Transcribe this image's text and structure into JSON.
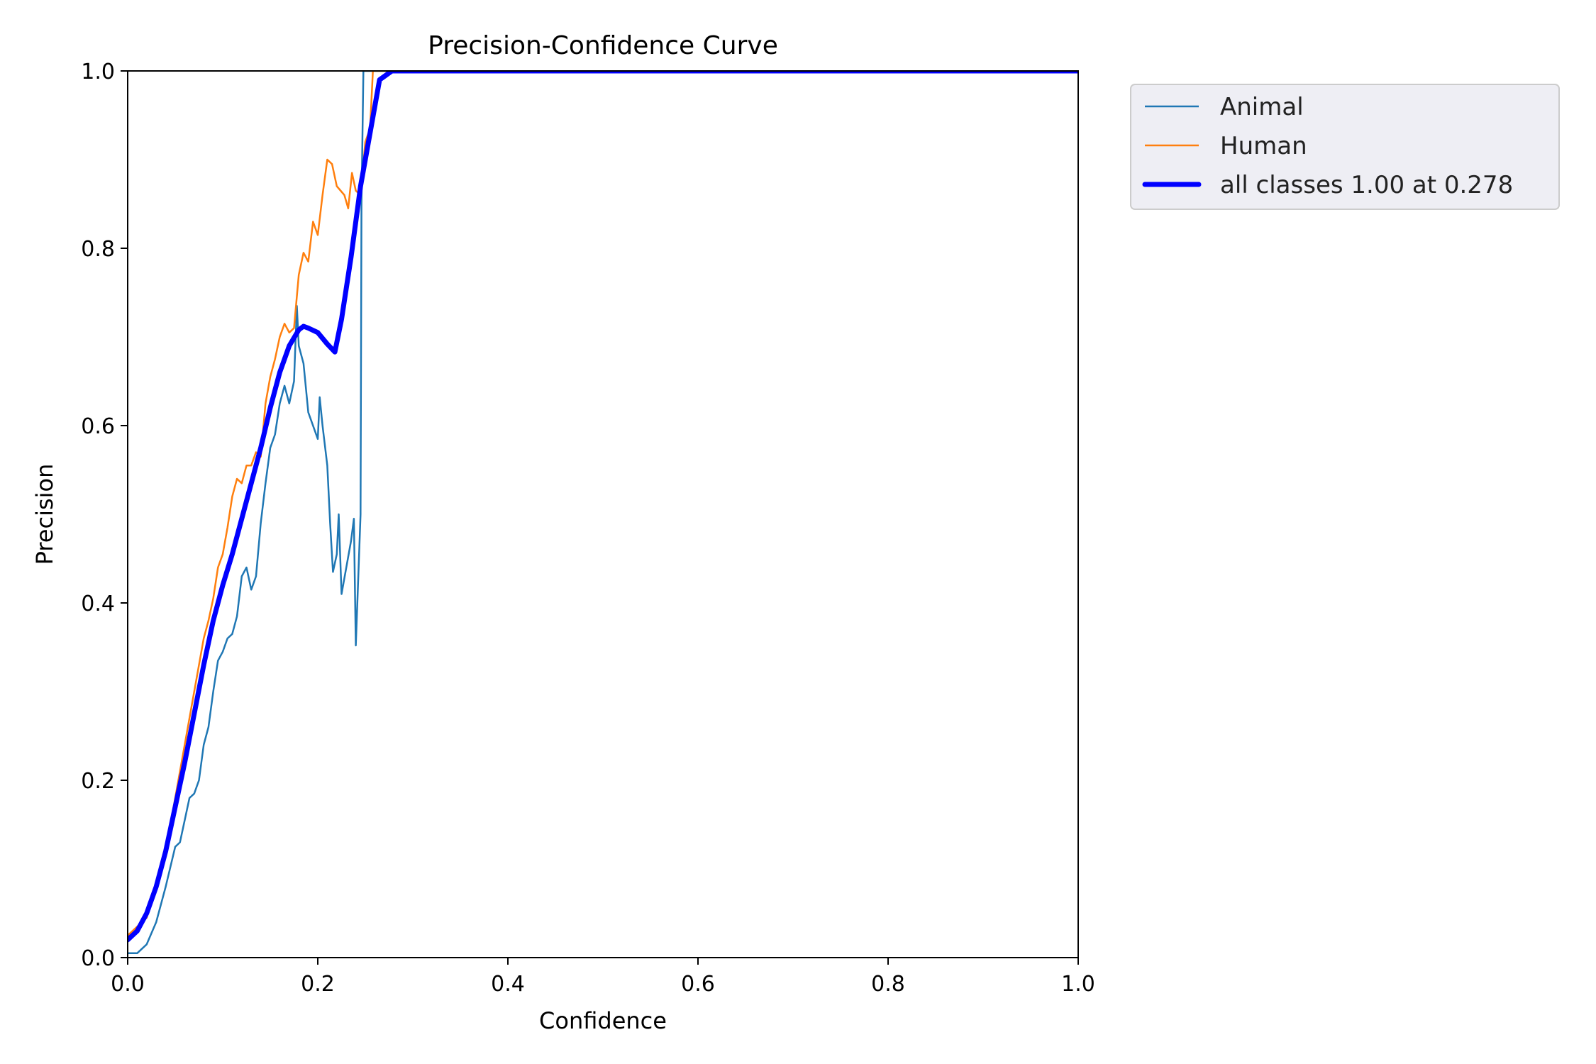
{
  "chart_data": {
    "type": "line",
    "title": "Precision-Confidence Curve",
    "xlabel": "Confidence",
    "ylabel": "Precision",
    "xlim": [
      0,
      1
    ],
    "ylim": [
      0,
      1
    ],
    "xticks": [
      "0.0",
      "0.2",
      "0.4",
      "0.6",
      "0.8",
      "1.0"
    ],
    "yticks": [
      "0.0",
      "0.2",
      "0.4",
      "0.6",
      "0.8",
      "1.0"
    ],
    "grid": false,
    "legend_position": "outside-top-right",
    "series": [
      {
        "name": "Animal",
        "color": "#1f77b4",
        "points": [
          [
            0.0,
            0.005
          ],
          [
            0.01,
            0.005
          ],
          [
            0.02,
            0.015
          ],
          [
            0.03,
            0.04
          ],
          [
            0.04,
            0.08
          ],
          [
            0.05,
            0.125
          ],
          [
            0.055,
            0.13
          ],
          [
            0.06,
            0.155
          ],
          [
            0.065,
            0.18
          ],
          [
            0.07,
            0.185
          ],
          [
            0.075,
            0.2
          ],
          [
            0.08,
            0.24
          ],
          [
            0.085,
            0.26
          ],
          [
            0.09,
            0.3
          ],
          [
            0.095,
            0.335
          ],
          [
            0.1,
            0.345
          ],
          [
            0.105,
            0.36
          ],
          [
            0.11,
            0.365
          ],
          [
            0.115,
            0.385
          ],
          [
            0.12,
            0.43
          ],
          [
            0.125,
            0.44
          ],
          [
            0.13,
            0.415
          ],
          [
            0.135,
            0.43
          ],
          [
            0.14,
            0.49
          ],
          [
            0.145,
            0.535
          ],
          [
            0.15,
            0.575
          ],
          [
            0.155,
            0.59
          ],
          [
            0.16,
            0.625
          ],
          [
            0.165,
            0.645
          ],
          [
            0.17,
            0.625
          ],
          [
            0.175,
            0.65
          ],
          [
            0.178,
            0.735
          ],
          [
            0.18,
            0.69
          ],
          [
            0.185,
            0.67
          ],
          [
            0.19,
            0.615
          ],
          [
            0.2,
            0.585
          ],
          [
            0.202,
            0.632
          ],
          [
            0.205,
            0.6
          ],
          [
            0.21,
            0.555
          ],
          [
            0.213,
            0.49
          ],
          [
            0.216,
            0.435
          ],
          [
            0.22,
            0.455
          ],
          [
            0.222,
            0.5
          ],
          [
            0.225,
            0.41
          ],
          [
            0.23,
            0.44
          ],
          [
            0.235,
            0.47
          ],
          [
            0.238,
            0.495
          ],
          [
            0.24,
            0.352
          ],
          [
            0.245,
            0.5
          ],
          [
            0.246,
            0.85
          ],
          [
            0.248,
            1.0
          ],
          [
            1.0,
            1.0
          ]
        ]
      },
      {
        "name": "Human",
        "color": "#ff7f0e",
        "points": [
          [
            0.0,
            0.025
          ],
          [
            0.02,
            0.045
          ],
          [
            0.04,
            0.12
          ],
          [
            0.05,
            0.18
          ],
          [
            0.06,
            0.24
          ],
          [
            0.07,
            0.3
          ],
          [
            0.08,
            0.36
          ],
          [
            0.085,
            0.38
          ],
          [
            0.09,
            0.405
          ],
          [
            0.095,
            0.44
          ],
          [
            0.1,
            0.455
          ],
          [
            0.105,
            0.485
          ],
          [
            0.11,
            0.52
          ],
          [
            0.115,
            0.54
          ],
          [
            0.12,
            0.535
          ],
          [
            0.125,
            0.555
          ],
          [
            0.13,
            0.555
          ],
          [
            0.135,
            0.57
          ],
          [
            0.14,
            0.565
          ],
          [
            0.145,
            0.625
          ],
          [
            0.15,
            0.655
          ],
          [
            0.155,
            0.675
          ],
          [
            0.16,
            0.7
          ],
          [
            0.165,
            0.715
          ],
          [
            0.17,
            0.705
          ],
          [
            0.175,
            0.71
          ],
          [
            0.18,
            0.77
          ],
          [
            0.185,
            0.795
          ],
          [
            0.19,
            0.785
          ],
          [
            0.195,
            0.83
          ],
          [
            0.2,
            0.815
          ],
          [
            0.205,
            0.86
          ],
          [
            0.21,
            0.9
          ],
          [
            0.215,
            0.895
          ],
          [
            0.22,
            0.87
          ],
          [
            0.228,
            0.86
          ],
          [
            0.232,
            0.845
          ],
          [
            0.236,
            0.885
          ],
          [
            0.24,
            0.865
          ],
          [
            0.245,
            0.86
          ],
          [
            0.25,
            0.92
          ],
          [
            0.255,
            0.935
          ],
          [
            0.258,
            1.0
          ],
          [
            1.0,
            1.0
          ]
        ]
      },
      {
        "name": "all classes 1.00 at 0.278",
        "color": "#0000ff",
        "points": [
          [
            0.0,
            0.02
          ],
          [
            0.01,
            0.03
          ],
          [
            0.02,
            0.05
          ],
          [
            0.03,
            0.08
          ],
          [
            0.04,
            0.12
          ],
          [
            0.05,
            0.17
          ],
          [
            0.06,
            0.22
          ],
          [
            0.07,
            0.275
          ],
          [
            0.08,
            0.33
          ],
          [
            0.09,
            0.38
          ],
          [
            0.1,
            0.42
          ],
          [
            0.11,
            0.455
          ],
          [
            0.12,
            0.495
          ],
          [
            0.13,
            0.535
          ],
          [
            0.14,
            0.575
          ],
          [
            0.15,
            0.62
          ],
          [
            0.16,
            0.66
          ],
          [
            0.17,
            0.69
          ],
          [
            0.18,
            0.708
          ],
          [
            0.185,
            0.712
          ],
          [
            0.19,
            0.71
          ],
          [
            0.2,
            0.705
          ],
          [
            0.21,
            0.692
          ],
          [
            0.218,
            0.683
          ],
          [
            0.225,
            0.72
          ],
          [
            0.235,
            0.79
          ],
          [
            0.245,
            0.87
          ],
          [
            0.255,
            0.93
          ],
          [
            0.265,
            0.99
          ],
          [
            0.278,
            1.0
          ],
          [
            1.0,
            1.0
          ]
        ]
      }
    ]
  }
}
